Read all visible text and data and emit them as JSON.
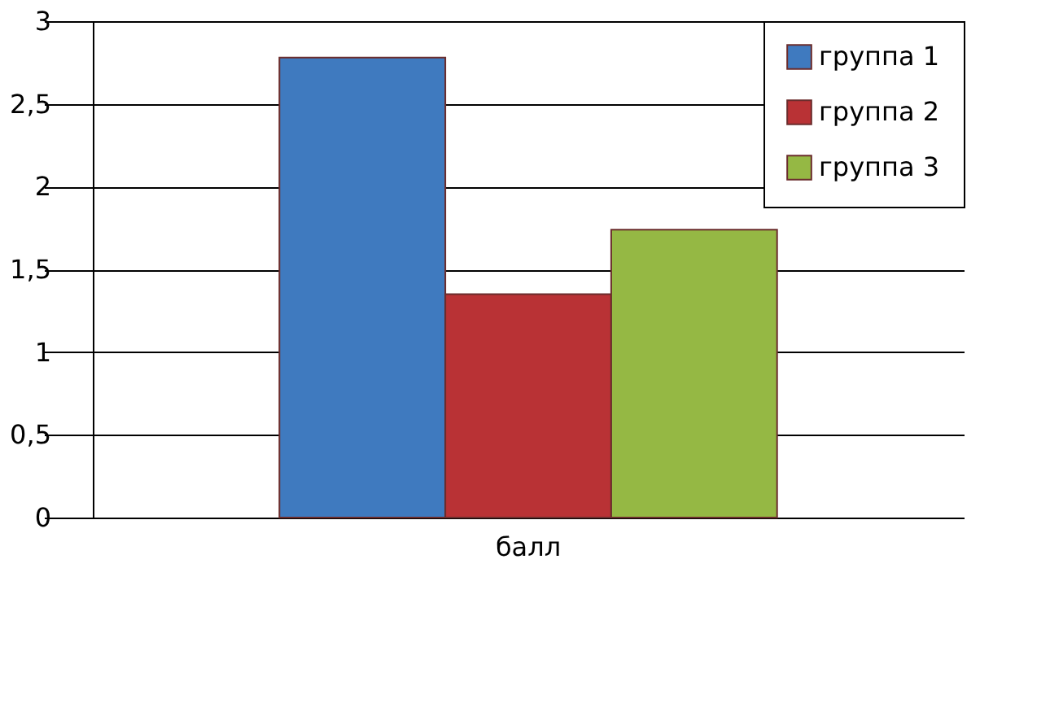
{
  "chart_data": {
    "type": "bar",
    "categories": [
      "балл"
    ],
    "series": [
      {
        "name": "группа 1",
        "color": "#3f7abf",
        "values": [
          2.78
        ]
      },
      {
        "name": "группа 2",
        "color": "#b93235",
        "values": [
          1.35
        ]
      },
      {
        "name": "группа 3",
        "color": "#95b844",
        "values": [
          1.74
        ]
      }
    ],
    "ylim": [
      0,
      3
    ],
    "yticks": [
      0,
      {
        "value": 0.5,
        "label": "0,5"
      },
      1,
      {
        "value": 1.5,
        "label": "1,5"
      },
      2,
      {
        "value": 2.5,
        "label": "2,5"
      },
      3
    ],
    "grid": "y",
    "legend": "top right"
  }
}
